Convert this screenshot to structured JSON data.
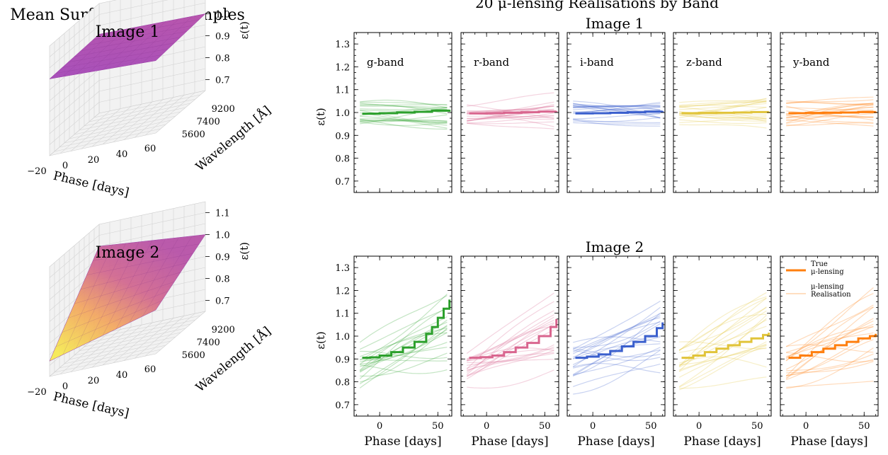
{
  "figure": {
    "left_title": "Mean Surface for 20 Samples",
    "right_title": "20 μ-lensing Realisations by Band"
  },
  "chart_data": [
    {
      "type": "surface",
      "panel": "Image 1",
      "title": "Image 1",
      "xlabel": "Phase [days]",
      "ylabel": "Wavelength [Å]",
      "zlabel": "ε(t)",
      "x_ticks": [
        -20,
        0,
        20,
        40,
        60
      ],
      "y_ticks": [
        5600,
        7400,
        9200
      ],
      "z_ticks": [
        0.7,
        0.8,
        0.9,
        1.0,
        1.1
      ],
      "zlim": [
        0.65,
        1.15
      ],
      "colormap": "plasma",
      "surface": {
        "phase": [
          -20,
          60
        ],
        "wavelength": [
          4000,
          10000
        ],
        "values": [
          [
            1.0,
            1.01
          ],
          [
            0.98,
            1.0
          ]
        ]
      }
    },
    {
      "type": "surface",
      "panel": "Image 2",
      "title": "Image 2",
      "xlabel": "Phase [days]",
      "ylabel": "Wavelength [Å]",
      "zlabel": "ε(t)",
      "x_ticks": [
        -20,
        0,
        20,
        40,
        60
      ],
      "y_ticks": [
        5600,
        7400,
        9200
      ],
      "z_ticks": [
        0.7,
        0.8,
        0.9,
        1.0,
        1.1
      ],
      "zlim": [
        0.65,
        1.15
      ],
      "colormap": "plasma",
      "surface": {
        "phase": [
          -20,
          60
        ],
        "wavelength": [
          4000,
          10000
        ],
        "values": [
          [
            0.72,
            1.05
          ],
          [
            0.85,
            1.0
          ]
        ]
      }
    },
    {
      "type": "line",
      "title": "Image 1",
      "ylabel": "ε(t)",
      "xlabel": "Phase [days]",
      "ylim": [
        0.65,
        1.35
      ],
      "xlim": [
        -22,
        62
      ],
      "yticks": [
        0.7,
        0.8,
        0.9,
        1.0,
        1.1,
        1.2,
        1.3
      ],
      "xticks": [
        0,
        50
      ],
      "bands": [
        {
          "name": "g-band",
          "color": "#2ca02c",
          "x": [
            -15,
            0,
            15,
            30,
            45,
            60
          ],
          "true": [
            0.995,
            0.997,
            1.0,
            1.003,
            1.008,
            1.012
          ]
        },
        {
          "name": "r-band",
          "color": "#d9668f",
          "x": [
            -15,
            0,
            15,
            30,
            45,
            60
          ],
          "true": [
            0.996,
            0.997,
            0.999,
            1.001,
            1.004,
            1.006
          ]
        },
        {
          "name": "i-band",
          "color": "#3a5fcd",
          "x": [
            -15,
            0,
            15,
            30,
            45,
            60
          ],
          "true": [
            0.996,
            0.997,
            0.999,
            1.001,
            1.004,
            1.006
          ]
        },
        {
          "name": "z-band",
          "color": "#e1c43a",
          "x": [
            -15,
            0,
            15,
            30,
            45,
            60
          ],
          "true": [
            0.997,
            0.998,
            0.999,
            1.0,
            1.002,
            1.004
          ]
        },
        {
          "name": "y-band",
          "color": "#ff7f0e",
          "x": [
            -15,
            0,
            15,
            30,
            45,
            60
          ],
          "true": [
            0.997,
            0.998,
            0.999,
            1.0,
            1.002,
            1.004
          ]
        }
      ]
    },
    {
      "type": "line",
      "title": "Image 2",
      "ylabel": "ε(t)",
      "xlabel": "Phase [days]",
      "ylim": [
        0.65,
        1.35
      ],
      "xlim": [
        -22,
        62
      ],
      "yticks": [
        0.7,
        0.8,
        0.9,
        1.0,
        1.1,
        1.2,
        1.3
      ],
      "xticks": [
        0,
        50
      ],
      "legend": {
        "placement": "top-left",
        "entries": [
          "True\nμ-lensing",
          "μ-lensing\nRealisation"
        ]
      },
      "bands": [
        {
          "name": "g-band",
          "color": "#2ca02c",
          "x": [
            -15,
            -8,
            0,
            10,
            20,
            30,
            40,
            45,
            50,
            55,
            60
          ],
          "true": [
            0.905,
            0.907,
            0.915,
            0.93,
            0.95,
            0.975,
            1.01,
            1.04,
            1.08,
            1.12,
            1.16
          ]
        },
        {
          "name": "r-band",
          "color": "#d9668f",
          "x": [
            -15,
            -5,
            5,
            15,
            25,
            35,
            45,
            55,
            60
          ],
          "true": [
            0.905,
            0.908,
            0.915,
            0.93,
            0.95,
            0.97,
            1.0,
            1.04,
            1.075
          ]
        },
        {
          "name": "i-band",
          "color": "#3a5fcd",
          "x": [
            -15,
            -5,
            5,
            15,
            25,
            35,
            45,
            55,
            60
          ],
          "true": [
            0.905,
            0.91,
            0.92,
            0.935,
            0.955,
            0.975,
            1.0,
            1.035,
            1.06
          ]
        },
        {
          "name": "z-band",
          "color": "#e1c43a",
          "x": [
            -15,
            -5,
            5,
            15,
            25,
            35,
            45,
            55,
            60
          ],
          "true": [
            0.905,
            0.915,
            0.93,
            0.945,
            0.96,
            0.975,
            0.99,
            1.005,
            1.015
          ]
        },
        {
          "name": "y-band",
          "color": "#ff7f0e",
          "x": [
            -15,
            -5,
            5,
            15,
            25,
            35,
            45,
            55,
            60
          ],
          "true": [
            0.905,
            0.915,
            0.93,
            0.945,
            0.96,
            0.975,
            0.99,
            1.0,
            1.01
          ]
        }
      ]
    }
  ]
}
